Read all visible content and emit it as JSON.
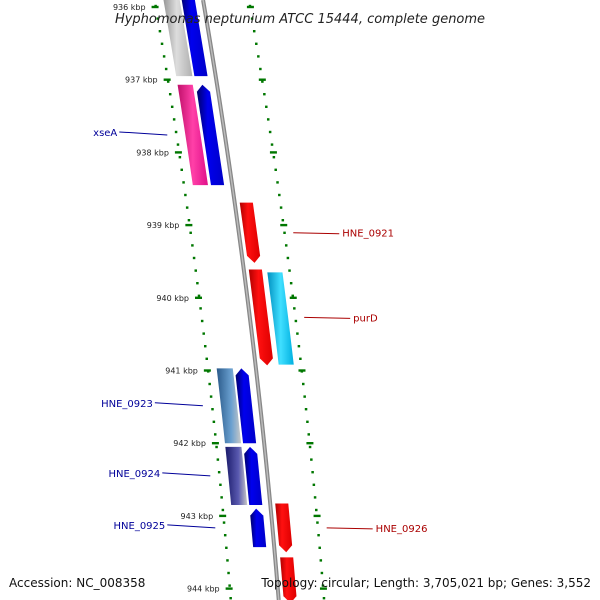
{
  "title": "Hyphomonas neptunium ATCC 15444, complete genome",
  "footer": {
    "accession": "Accession: NC_008358",
    "topology": "Topology: circular; Length: 3,705,021 bp; Genes: 3,552"
  },
  "colors": {
    "tick": "#007700",
    "backbone": "#888888",
    "forward_gene": "#0000ee",
    "reverse_gene": "#ee0000",
    "forward_label": "#000099",
    "reverse_label": "#aa0000"
  },
  "ticks": [
    {
      "label": "936 kbp",
      "kbp": 936
    },
    {
      "label": "937 kbp",
      "kbp": 937
    },
    {
      "label": "938 kbp",
      "kbp": 938
    },
    {
      "label": "939 kbp",
      "kbp": 939
    },
    {
      "label": "940 kbp",
      "kbp": 940
    },
    {
      "label": "941 kbp",
      "kbp": 941
    },
    {
      "label": "942 kbp",
      "kbp": 942
    },
    {
      "label": "943 kbp",
      "kbp": 943
    },
    {
      "label": "944 kbp",
      "kbp": 944
    }
  ],
  "genes": [
    {
      "label": "xseA",
      "strand": "forward",
      "color": "#0000ee",
      "start_kbp": 937.07,
      "end_kbp": 938.45
    },
    {
      "label": "",
      "strand": "forward",
      "color": "#0000ee",
      "start_kbp": 935.7,
      "end_kbp": 936.95
    },
    {
      "label": "HNE_0921",
      "strand": "reverse",
      "color": "#ee0000",
      "start_kbp": 938.69,
      "end_kbp": 939.52
    },
    {
      "label": "purD",
      "strand": "reverse",
      "color": "#ee0000",
      "start_kbp": 939.61,
      "end_kbp": 940.93
    },
    {
      "label": "HNE_0923",
      "strand": "forward",
      "color": "#0000ee",
      "start_kbp": 940.97,
      "end_kbp": 942.0
    },
    {
      "label": "HNE_0924",
      "strand": "forward",
      "color": "#0000ee",
      "start_kbp": 942.05,
      "end_kbp": 942.85
    },
    {
      "label": "HNE_0925",
      "strand": "forward",
      "color": "#0000ee",
      "start_kbp": 942.9,
      "end_kbp": 943.43
    },
    {
      "label": "HNE_0926",
      "strand": "reverse",
      "color": "#ee0000",
      "start_kbp": 942.83,
      "end_kbp": 943.5
    },
    {
      "label": "",
      "strand": "reverse",
      "color": "#ee0000",
      "start_kbp": 943.57,
      "end_kbp": 944.2
    }
  ],
  "features": [
    {
      "name": "grey-feature-1",
      "color": "#c8c8c8",
      "start_kbp": 935.7,
      "end_kbp": 936.95
    },
    {
      "name": "pink-feature",
      "color": "#ff1493",
      "start_kbp": 937.07,
      "end_kbp": 938.45
    },
    {
      "name": "cyan-feature",
      "color": "#00bfff",
      "start_kbp": 939.65,
      "end_kbp": 940.92
    },
    {
      "name": "steel-feature",
      "color": "#4682b4",
      "start_kbp": 940.97,
      "end_kbp": 942.0
    },
    {
      "name": "slate-feature",
      "color": "#3a3a99",
      "start_kbp": 942.05,
      "end_kbp": 942.85
    }
  ]
}
